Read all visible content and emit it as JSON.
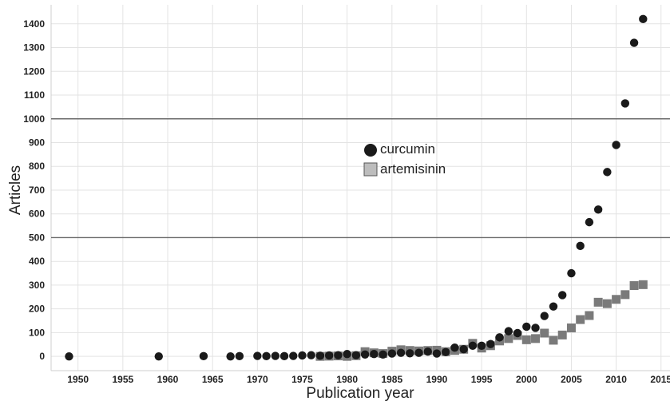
{
  "chart_data": {
    "type": "scatter",
    "title": "",
    "xlabel": "Publication year",
    "ylabel": "Articles",
    "xlim": [
      1947,
      2016
    ],
    "ylim": [
      -60,
      1480
    ],
    "grid": true,
    "legend_placement": "center",
    "x_ticks": [
      1950,
      1955,
      1960,
      1965,
      1970,
      1975,
      1980,
      1985,
      1990,
      1995,
      2000,
      2005,
      2010,
      2015
    ],
    "y_ticks": [
      0,
      100,
      200,
      300,
      400,
      500,
      600,
      700,
      800,
      900,
      1000,
      1100,
      1200,
      1300,
      1400
    ],
    "reference_lines": [
      500,
      1000
    ],
    "series": [
      {
        "name": "curcumin",
        "marker": "circle",
        "color": "#1a1a1a",
        "points": [
          [
            1949,
            0
          ],
          [
            1959,
            0
          ],
          [
            1964,
            1
          ],
          [
            1967,
            0
          ],
          [
            1968,
            1
          ],
          [
            1970,
            2
          ],
          [
            1971,
            1
          ],
          [
            1972,
            2
          ],
          [
            1973,
            1
          ],
          [
            1974,
            2
          ],
          [
            1975,
            4
          ],
          [
            1976,
            5
          ],
          [
            1977,
            3
          ],
          [
            1978,
            4
          ],
          [
            1979,
            5
          ],
          [
            1980,
            10
          ],
          [
            1981,
            5
          ],
          [
            1982,
            8
          ],
          [
            1983,
            10
          ],
          [
            1984,
            8
          ],
          [
            1985,
            12
          ],
          [
            1986,
            15
          ],
          [
            1987,
            13
          ],
          [
            1988,
            15
          ],
          [
            1989,
            20
          ],
          [
            1990,
            12
          ],
          [
            1991,
            18
          ],
          [
            1992,
            37
          ],
          [
            1993,
            30
          ],
          [
            1994,
            45
          ],
          [
            1995,
            45
          ],
          [
            1996,
            52
          ],
          [
            1997,
            80
          ],
          [
            1998,
            106
          ],
          [
            1999,
            98
          ],
          [
            2000,
            125
          ],
          [
            2001,
            120
          ],
          [
            2002,
            170
          ],
          [
            2003,
            210
          ],
          [
            2004,
            258
          ],
          [
            2005,
            350
          ],
          [
            2006,
            465
          ],
          [
            2007,
            565
          ],
          [
            2008,
            618
          ],
          [
            2009,
            776
          ],
          [
            2010,
            890
          ],
          [
            2011,
            1065
          ],
          [
            2012,
            1320
          ],
          [
            2013,
            1420
          ]
        ]
      },
      {
        "name": "artemisinin",
        "marker": "square",
        "color": "#7a7a7a",
        "points": [
          [
            1977,
            0
          ],
          [
            1978,
            1
          ],
          [
            1979,
            2
          ],
          [
            1980,
            0
          ],
          [
            1981,
            3
          ],
          [
            1982,
            20
          ],
          [
            1983,
            15
          ],
          [
            1984,
            12
          ],
          [
            1985,
            22
          ],
          [
            1986,
            28
          ],
          [
            1987,
            25
          ],
          [
            1988,
            23
          ],
          [
            1989,
            25
          ],
          [
            1990,
            26
          ],
          [
            1991,
            20
          ],
          [
            1992,
            25
          ],
          [
            1993,
            30
          ],
          [
            1994,
            55
          ],
          [
            1995,
            35
          ],
          [
            1996,
            45
          ],
          [
            1997,
            65
          ],
          [
            1998,
            75
          ],
          [
            1999,
            88
          ],
          [
            2000,
            70
          ],
          [
            2001,
            75
          ],
          [
            2002,
            98
          ],
          [
            2003,
            68
          ],
          [
            2004,
            90
          ],
          [
            2005,
            120
          ],
          [
            2006,
            155
          ],
          [
            2007,
            172
          ],
          [
            2008,
            228
          ],
          [
            2009,
            222
          ],
          [
            2010,
            240
          ],
          [
            2011,
            260
          ],
          [
            2012,
            298
          ],
          [
            2013,
            302
          ]
        ]
      }
    ]
  }
}
